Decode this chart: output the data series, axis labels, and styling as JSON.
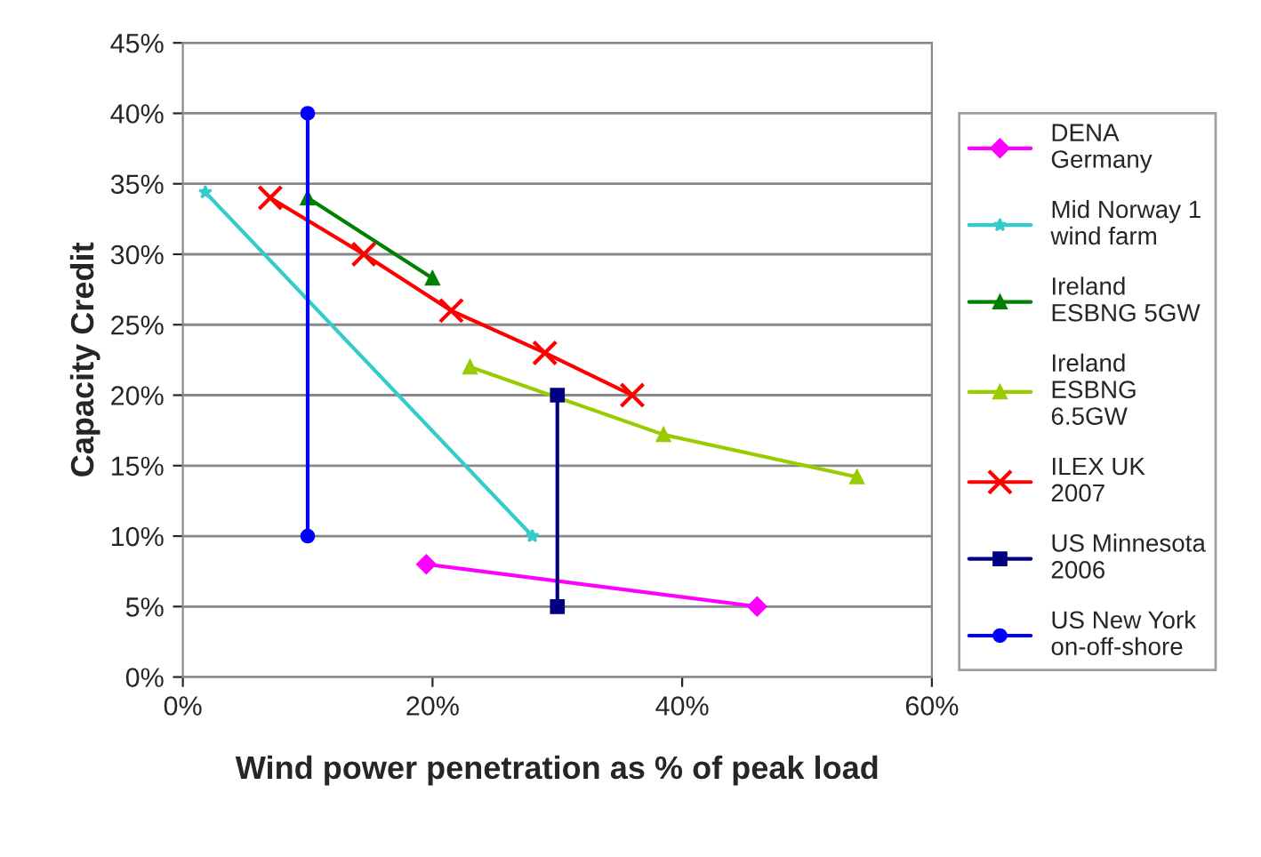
{
  "chart_data": {
    "type": "line",
    "xlabel": "Wind power penetration as % of peak load",
    "ylabel": "Capacity Credit",
    "xlim": [
      0,
      60
    ],
    "xticks": [
      {
        "value": 0,
        "label": "0%"
      },
      {
        "value": 20,
        "label": "20%"
      },
      {
        "value": 40,
        "label": "40%"
      },
      {
        "value": 60,
        "label": "60%"
      }
    ],
    "ylim": [
      0,
      45
    ],
    "yticks": [
      {
        "value": 0,
        "label": "0%"
      },
      {
        "value": 5,
        "label": "5%"
      },
      {
        "value": 10,
        "label": "10%"
      },
      {
        "value": 15,
        "label": "15%"
      },
      {
        "value": 20,
        "label": "20%"
      },
      {
        "value": 25,
        "label": "25%"
      },
      {
        "value": 30,
        "label": "30%"
      },
      {
        "value": 35,
        "label": "35%"
      },
      {
        "value": 40,
        "label": "40%"
      },
      {
        "value": 45,
        "label": "45%"
      }
    ],
    "grid": "y",
    "legend": "right",
    "line_style": "solid",
    "series": [
      {
        "name": "DENA\nGermany",
        "color": "#ff00ff",
        "marker": "diamond",
        "x": [
          19.5,
          46
        ],
        "values": [
          8,
          5
        ]
      },
      {
        "name": "Mid Norway 1\nwind farm",
        "color": "#33cccc",
        "marker": "star",
        "x": [
          1.8,
          28
        ],
        "values": [
          34.4,
          10
        ]
      },
      {
        "name": "Ireland\nESBNG 5GW",
        "color": "#008000",
        "marker": "triangle",
        "x": [
          10,
          20
        ],
        "values": [
          34,
          28.3
        ]
      },
      {
        "name": "Ireland\nESBNG\n6.5GW",
        "color": "#99cc00",
        "marker": "triangle",
        "x": [
          23,
          38.5,
          54
        ],
        "values": [
          22,
          17.2,
          14.2
        ]
      },
      {
        "name": "ILEX UK\n2007",
        "color": "#ff0000",
        "marker": "cross",
        "x": [
          7,
          14.5,
          21.5,
          29,
          36
        ],
        "values": [
          34,
          30,
          26,
          23,
          20
        ]
      },
      {
        "name": "US Minnesota\n2006",
        "color": "#000080",
        "marker": "square",
        "x": [
          30,
          30
        ],
        "values": [
          20,
          5
        ]
      },
      {
        "name": "US New York\non-off-shore",
        "color": "#0000ff",
        "marker": "circle",
        "x": [
          10,
          10
        ],
        "values": [
          40,
          10
        ]
      }
    ]
  }
}
